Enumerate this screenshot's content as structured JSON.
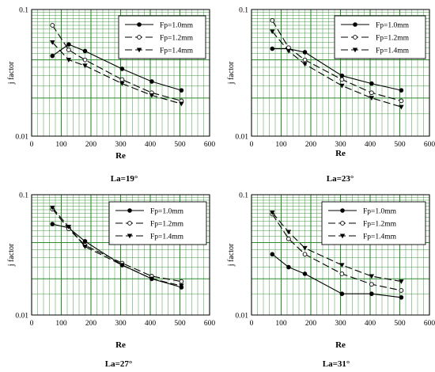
{
  "charts": [
    {
      "type": "line",
      "title": "",
      "xlabel": "Re",
      "ylabel": "j factor",
      "caption": "La=19°",
      "xlim": [
        0,
        600
      ],
      "ylim": [
        0.01,
        0.1
      ],
      "yscale": "log",
      "grid": true,
      "legend_position": "top-right",
      "x_ticks": [
        "0",
        "100",
        "200",
        "300",
        "400",
        "500",
        "600"
      ],
      "y_ticks": [
        "0.01",
        "0.1"
      ],
      "series": [
        {
          "name": "Fp=1.0mm",
          "marker": "filled-circle",
          "dash": "solid",
          "x": [
            70,
            125,
            180,
            305,
            405,
            505
          ],
          "y": [
            0.043,
            0.053,
            0.047,
            0.034,
            0.027,
            0.023
          ]
        },
        {
          "name": "Fp=1.2mm",
          "marker": "open-circle",
          "dash": "long-dash",
          "x": [
            70,
            125,
            180,
            305,
            405,
            505
          ],
          "y": [
            0.075,
            0.048,
            0.04,
            0.028,
            0.022,
            0.019
          ]
        },
        {
          "name": "Fp=1.4mm",
          "marker": "filled-triangle",
          "dash": "long-dash",
          "x": [
            70,
            125,
            180,
            305,
            405,
            505
          ],
          "y": [
            0.055,
            0.04,
            0.036,
            0.026,
            0.021,
            0.018
          ]
        }
      ]
    },
    {
      "type": "line",
      "title": "",
      "xlabel": "Re",
      "ylabel": "j factor",
      "caption": "La=23°",
      "xlim": [
        0,
        600
      ],
      "ylim": [
        0.01,
        0.1
      ],
      "yscale": "log",
      "grid": true,
      "legend_position": "top-right",
      "x_ticks": [
        "0",
        "100",
        "200",
        "300",
        "400",
        "500",
        "600"
      ],
      "y_ticks": [
        "0.01",
        "0.1"
      ],
      "series": [
        {
          "name": "Fp=1.0mm",
          "marker": "filled-circle",
          "dash": "solid",
          "x": [
            70,
            125,
            180,
            305,
            405,
            505
          ],
          "y": [
            0.049,
            0.049,
            0.046,
            0.03,
            0.026,
            0.023
          ]
        },
        {
          "name": "Fp=1.2mm",
          "marker": "open-circle",
          "dash": "long-dash",
          "x": [
            70,
            125,
            180,
            305,
            405,
            505
          ],
          "y": [
            0.082,
            0.05,
            0.04,
            0.028,
            0.022,
            0.019
          ]
        },
        {
          "name": "Fp=1.4mm",
          "marker": "filled-triangle",
          "dash": "long-dash",
          "x": [
            70,
            125,
            180,
            305,
            405,
            505
          ],
          "y": [
            0.067,
            0.047,
            0.037,
            0.025,
            0.02,
            0.017
          ]
        }
      ]
    },
    {
      "type": "line",
      "title": "",
      "xlabel": "Re",
      "ylabel": "j factor",
      "caption": "La=27°",
      "xlim": [
        0,
        600
      ],
      "ylim": [
        0.01,
        0.1
      ],
      "yscale": "log",
      "grid": true,
      "legend_position": "top-right",
      "x_ticks": [
        "0",
        "100",
        "200",
        "300",
        "400",
        "500",
        "600"
      ],
      "y_ticks": [
        "0.01",
        "0.1"
      ],
      "series": [
        {
          "name": "Fp=1.0mm",
          "marker": "filled-circle",
          "dash": "solid",
          "x": [
            70,
            125,
            180,
            305,
            405,
            505
          ],
          "y": [
            0.057,
            0.053,
            0.041,
            0.026,
            0.02,
            0.017
          ]
        },
        {
          "name": "Fp=1.2mm",
          "marker": "open-circle",
          "dash": "long-dash",
          "x": [
            70,
            125,
            180,
            305,
            405,
            505
          ],
          "y": [
            0.076,
            0.052,
            0.038,
            0.027,
            0.021,
            0.019
          ]
        },
        {
          "name": "Fp=1.4mm",
          "marker": "filled-triangle",
          "dash": "long-dash",
          "x": [
            70,
            125,
            180,
            305,
            405,
            505
          ],
          "y": [
            0.078,
            0.054,
            0.037,
            0.026,
            0.02,
            0.0175
          ]
        }
      ]
    },
    {
      "type": "line",
      "title": "",
      "xlabel": "Re",
      "ylabel": "j factor",
      "caption": "La=31°",
      "xlim": [
        0,
        600
      ],
      "ylim": [
        0.01,
        0.1
      ],
      "yscale": "log",
      "grid": true,
      "legend_position": "top-right",
      "x_ticks": [
        "0",
        "100",
        "200",
        "300",
        "400",
        "500",
        "600"
      ],
      "y_ticks": [
        "0.01",
        "0.1"
      ],
      "series": [
        {
          "name": "Fp=1.0mm",
          "marker": "filled-circle",
          "dash": "solid",
          "x": [
            70,
            125,
            180,
            305,
            405,
            505
          ],
          "y": [
            0.032,
            0.025,
            0.022,
            0.015,
            0.015,
            0.014
          ]
        },
        {
          "name": "Fp=1.2mm",
          "marker": "open-circle",
          "dash": "long-dash",
          "x": [
            70,
            125,
            180,
            305,
            405,
            505
          ],
          "y": [
            0.069,
            0.043,
            0.032,
            0.022,
            0.018,
            0.016
          ]
        },
        {
          "name": "Fp=1.4mm",
          "marker": "filled-triangle",
          "dash": "long-dash",
          "x": [
            70,
            125,
            180,
            305,
            405,
            505
          ],
          "y": [
            0.071,
            0.049,
            0.036,
            0.026,
            0.021,
            0.019
          ]
        }
      ]
    }
  ],
  "colors": {
    "grid": "#2e8b2e",
    "line": "#000000",
    "background": "#ffffff"
  }
}
